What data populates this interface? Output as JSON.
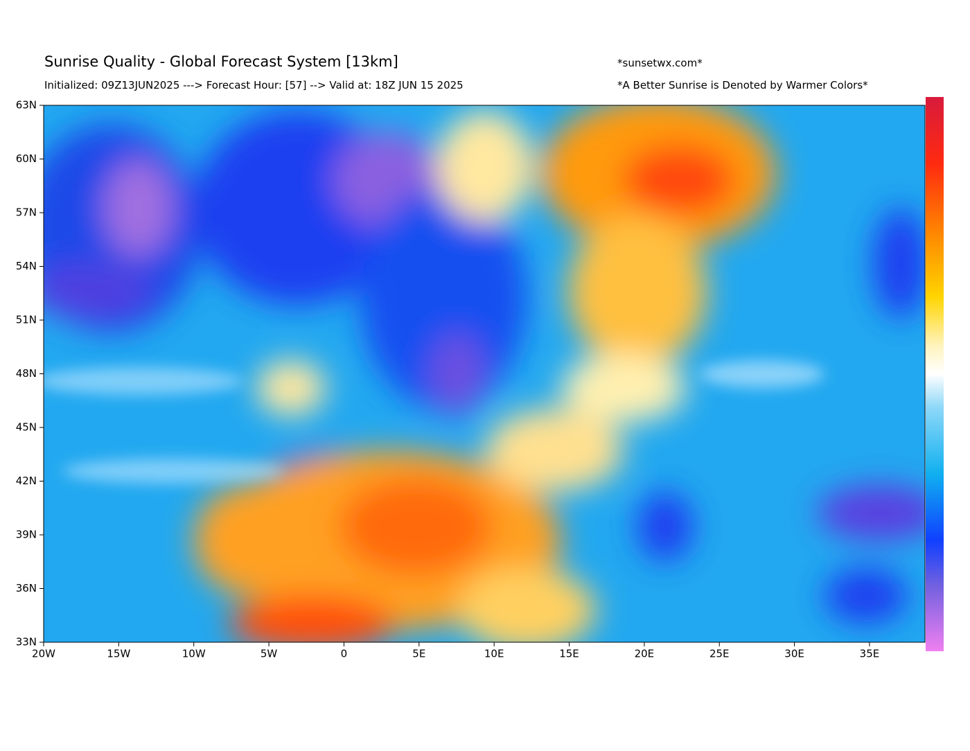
{
  "header": {
    "title": "Sunrise Quality - Global Forecast System [13km]",
    "subtitle": "Initialized: 09Z13JUN2025 ---> Forecast Hour: [57] --> Valid at: 18Z JUN 15 2025",
    "site": "*sunsetwx.com*",
    "note": "*A Better Sunrise is Denoted by Warmer Colors*"
  },
  "axes": {
    "lat_labels": [
      "63N",
      "60N",
      "57N",
      "54N",
      "51N",
      "48N",
      "45N",
      "42N",
      "39N",
      "36N",
      "33N"
    ],
    "lon_labels": [
      "20W",
      "15W",
      "10W",
      "5W",
      "0",
      "5E",
      "10E",
      "15E",
      "20E",
      "25E",
      "30E",
      "35E"
    ]
  }
}
